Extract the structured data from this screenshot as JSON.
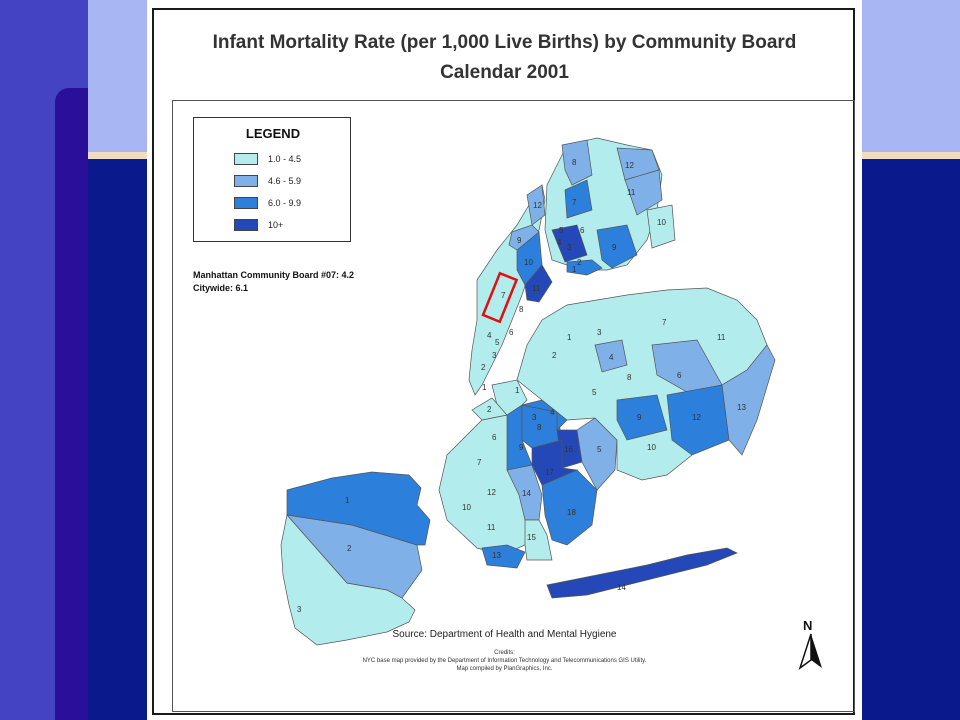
{
  "title_line1": "Infant Mortality Rate (per 1,000 Live Births) by Community Board",
  "title_line2": "Calendar 2001",
  "legend": {
    "title": "LEGEND",
    "items": [
      {
        "label": "1.0 - 4.5",
        "color": "#b3ecec"
      },
      {
        "label": "4.6 - 5.9",
        "color": "#7fb1e8"
      },
      {
        "label": "6.0 - 9.9",
        "color": "#2d7fdc"
      },
      {
        "label": "10+",
        "color": "#2448b8"
      }
    ]
  },
  "notes": {
    "board_note": "Manhattan Community Board #07: 4.2",
    "citywide": "Citywide: 6.1"
  },
  "source": "Source: Department of Health and Mental Hygiene",
  "credits": {
    "line1": "Credits:",
    "line2": "NYC base map provided by the Department of Information Technology and Telecommunications GIS Utility.",
    "line3": "Map compiled by PlanGraphics, Inc."
  },
  "north_label": "N",
  "colors": {
    "class1": "#b3ecec",
    "class2": "#7fb1e8",
    "class3": "#2d7fdc",
    "class4": "#2448b8",
    "highlight": "#e01010"
  },
  "district_labels": {
    "staten_island": [
      "1",
      "2",
      "3"
    ],
    "manhattan": [
      "12",
      "10",
      "9",
      "11",
      "7",
      "8",
      "6",
      "5",
      "4",
      "3",
      "2",
      "1"
    ],
    "bronx": [
      "8",
      "12",
      "7",
      "5",
      "11",
      "4",
      "6",
      "3",
      "9",
      "2",
      "1",
      "10"
    ],
    "queens": [
      "1",
      "3",
      "2",
      "4",
      "7",
      "11",
      "6",
      "8",
      "5",
      "9",
      "12",
      "13",
      "10",
      "14"
    ],
    "brooklyn": [
      "1",
      "2",
      "3",
      "4",
      "8",
      "16",
      "9",
      "6",
      "5",
      "17",
      "7",
      "14",
      "18",
      "12",
      "10",
      "11",
      "15",
      "13"
    ]
  }
}
